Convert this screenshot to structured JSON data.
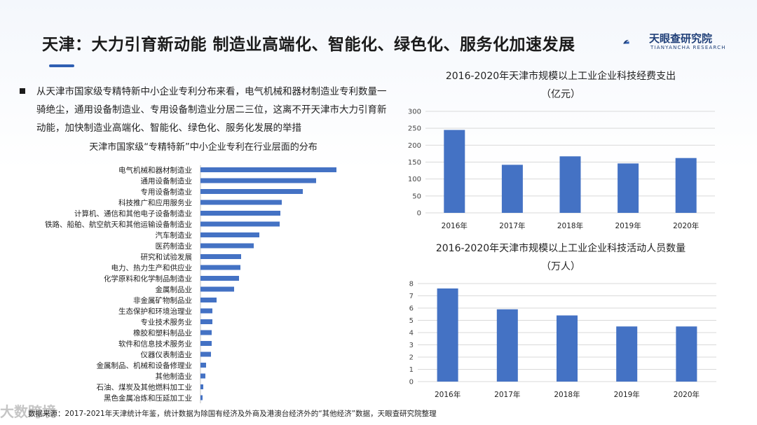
{
  "header": {
    "title": "天津：大力引育新动能 制造业高端化、智能化、绿色化、服务化加速发展",
    "logo_text": "天眼查研究院",
    "logo_sub": "TIANYANCHA RESEARCH"
  },
  "description": "从天津市国家级专精特新中小企业专利分布来看，电气机械和器材制造业专利数量一骑绝尘，通用设备制造业、专用设备制造业分居二三位，这离不开天津市大力引育新动能，加快制造业高端化、智能化、绿色化、服务化发展的举措",
  "footer": {
    "source": "数据来源：2017-2021年天津统计年鉴，统计数据为除国有经济及外商及港澳台经济外的“其他经济”数据，天眼查研究院整理",
    "watermark": "大数跨境"
  },
  "colors": {
    "bar": "#4472c4",
    "grid": "#d9d9d9",
    "accent": "#2f5fb3"
  },
  "chart_data": [
    {
      "type": "bar",
      "orientation": "horizontal",
      "title": "天津市国家级“专精特新”中小企业专利在行业层面的分布",
      "categories": [
        "电气机械和器材制造业",
        "通用设备制造业",
        "专用设备制造业",
        "科技推广和应用服务业",
        "计算机、通信和其他电子设备制造业",
        "铁路、船舶、航空航天和其他运输设备制造业",
        "汽车制造业",
        "医药制造业",
        "研究和试验发展",
        "电力、热力生产和供应业",
        "化学原料和化学制品制造业",
        "金属制品业",
        "非金属矿物制品业",
        "生态保护和环境治理业",
        "专业技术服务业",
        "橡胶和塑料制品业",
        "软件和信息技术服务业",
        "仪器仪表制造业",
        "金属制品、机械和设备修理业",
        "其他制造业",
        "石油、煤炭及其他燃料加工业",
        "黑色金属冶炼和压延加工业"
      ],
      "values": [
        194,
        165,
        146,
        116,
        114,
        113,
        84,
        76,
        58,
        57,
        55,
        48,
        23,
        17,
        17,
        16,
        16,
        15,
        8,
        7,
        4,
        3
      ],
      "grid": false,
      "axis_visible": false
    },
    {
      "type": "bar",
      "title": "2016-2020年天津市规模以上工业企业科技经费支出",
      "subtitle": "（亿元）",
      "categories": [
        "2016年",
        "2017年",
        "2018年",
        "2019年",
        "2020年"
      ],
      "values": [
        245,
        142,
        167,
        146,
        162
      ],
      "ylim": [
        0,
        300
      ],
      "yticks": [
        0,
        50,
        100,
        150,
        200,
        250,
        300
      ],
      "grid": true
    },
    {
      "type": "bar",
      "title": "2016-2020年天津市规模以上工业企业科技活动人员数量",
      "subtitle": "（万人）",
      "categories": [
        "2016年",
        "2017年",
        "2018年",
        "2019年",
        "2020年"
      ],
      "values": [
        7.6,
        5.9,
        5.4,
        4.5,
        4.5
      ],
      "ylim": [
        0,
        8
      ],
      "yticks": [
        0,
        1,
        2,
        3,
        4,
        5,
        6,
        7,
        8
      ],
      "grid": true
    }
  ]
}
